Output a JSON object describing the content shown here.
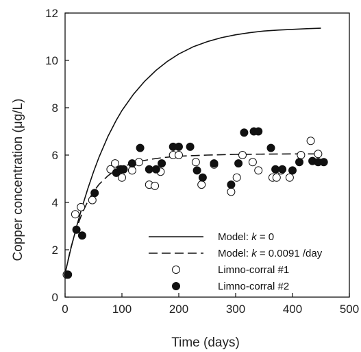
{
  "chart_data": {
    "type": "scatter",
    "xlabel": "Time (days)",
    "ylabel": "Copper  concentration (μg/L)",
    "xlim": [
      0,
      500
    ],
    "ylim": [
      0,
      12
    ],
    "xticks": [
      0,
      100,
      200,
      300,
      400,
      500
    ],
    "yticks": [
      0,
      2,
      4,
      6,
      8,
      10,
      12
    ],
    "grid": false,
    "legend_position": "bottom-right",
    "series": [
      {
        "name_prefix": "Model: ",
        "name_var": "k",
        "name_suffix": " = 0",
        "kind": "line",
        "style": "solid",
        "x": [
          0,
          10,
          20,
          30,
          40,
          50,
          60,
          75,
          90,
          100,
          120,
          140,
          160,
          180,
          200,
          225,
          250,
          275,
          300,
          325,
          350,
          375,
          400,
          425,
          450
        ],
        "y": [
          1.0,
          2.03,
          2.96,
          3.81,
          4.58,
          5.29,
          5.93,
          6.77,
          7.47,
          7.88,
          8.56,
          9.12,
          9.58,
          9.96,
          10.27,
          10.57,
          10.79,
          10.96,
          11.08,
          11.17,
          11.24,
          11.28,
          11.31,
          11.34,
          11.36
        ]
      },
      {
        "name_prefix": "Model: ",
        "name_var": "k",
        "name_suffix": " = 0.0091 /day",
        "kind": "line",
        "style": "dashed",
        "x": [
          0,
          10,
          20,
          30,
          40,
          50,
          60,
          75,
          90,
          100,
          125,
          150,
          175,
          200,
          250,
          300,
          350,
          400,
          450
        ],
        "y": [
          1.0,
          2.07,
          2.9,
          3.54,
          4.05,
          4.45,
          4.77,
          5.12,
          5.38,
          5.5,
          5.7,
          5.82,
          5.9,
          5.95,
          6.0,
          6.03,
          6.04,
          6.05,
          6.05
        ]
      },
      {
        "name": "Limno-corral #1",
        "kind": "scatter",
        "marker": "open-circle",
        "x": [
          3,
          18,
          28,
          48,
          80,
          88,
          95,
          100,
          118,
          130,
          148,
          158,
          168,
          190,
          200,
          230,
          240,
          262,
          292,
          302,
          312,
          330,
          340,
          365,
          372,
          380,
          395,
          415,
          432,
          445
        ],
        "y": [
          0.95,
          3.5,
          3.8,
          4.1,
          5.4,
          5.65,
          5.35,
          5.05,
          5.35,
          5.7,
          4.75,
          4.7,
          5.3,
          6.0,
          6.0,
          5.7,
          4.75,
          5.6,
          4.45,
          5.05,
          6.0,
          5.7,
          5.35,
          5.05,
          5.05,
          5.35,
          5.05,
          6.0,
          6.6,
          6.05
        ]
      },
      {
        "name": "Limno-corral #2",
        "kind": "scatter",
        "marker": "filled-circle",
        "x": [
          5,
          20,
          30,
          52,
          90,
          98,
          103,
          118,
          132,
          148,
          160,
          170,
          190,
          200,
          220,
          232,
          242,
          262,
          292,
          305,
          315,
          332,
          340,
          362,
          370,
          382,
          400,
          412,
          435,
          445,
          455
        ],
        "y": [
          0.95,
          2.85,
          2.6,
          4.4,
          5.25,
          5.4,
          5.4,
          5.65,
          6.3,
          5.4,
          5.4,
          5.65,
          6.35,
          6.35,
          6.35,
          5.35,
          5.05,
          5.65,
          4.75,
          5.65,
          6.95,
          7.0,
          7.0,
          6.3,
          5.4,
          5.4,
          5.35,
          5.7,
          5.75,
          5.7,
          5.7
        ]
      }
    ]
  }
}
